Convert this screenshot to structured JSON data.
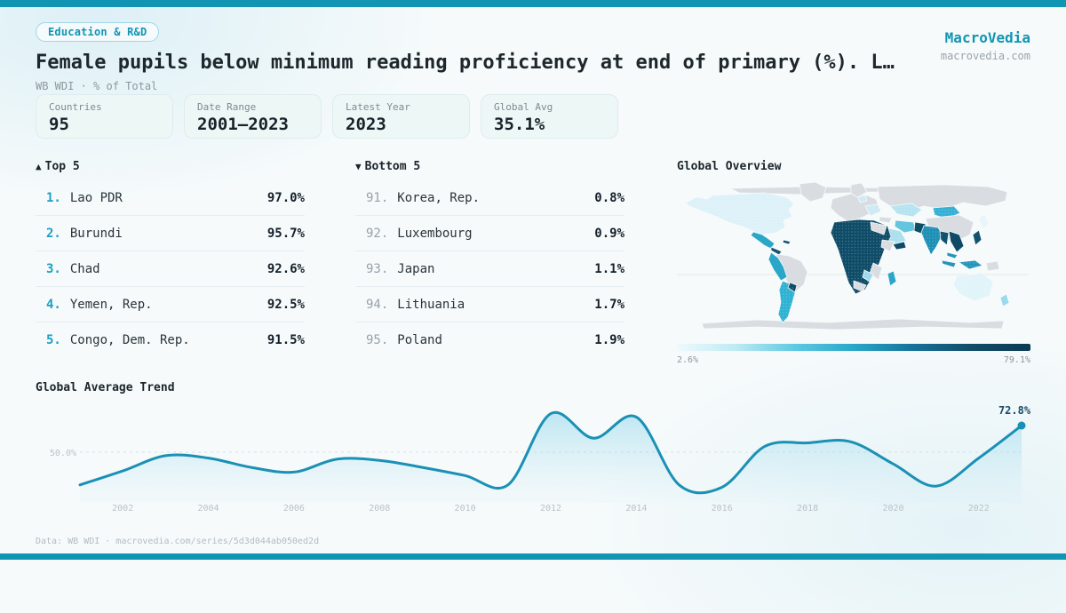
{
  "header": {
    "badge": "Education & R&D",
    "title": "Female pupils below minimum reading proficiency at end of primary (%). L…",
    "subtitle": "WB WDI · % of Total",
    "brand": "MacroVedia",
    "brand_domain": "macrovedia.com"
  },
  "stats": [
    {
      "label": "Countries",
      "value": "95"
    },
    {
      "label": "Date Range",
      "value": "2001—2023"
    },
    {
      "label": "Latest Year",
      "value": "2023"
    },
    {
      "label": "Global Avg",
      "value": "35.1%"
    }
  ],
  "top5": {
    "arrow": "▲",
    "title": "Top 5",
    "items": [
      {
        "rank": "1.",
        "name": "Lao PDR",
        "value": "97.0%"
      },
      {
        "rank": "2.",
        "name": "Burundi",
        "value": "95.7%"
      },
      {
        "rank": "3.",
        "name": "Chad",
        "value": "92.6%"
      },
      {
        "rank": "4.",
        "name": "Yemen, Rep.",
        "value": "92.5%"
      },
      {
        "rank": "5.",
        "name": "Congo, Dem. Rep.",
        "value": "91.5%"
      }
    ]
  },
  "bottom5": {
    "arrow": "▼",
    "title": "Bottom 5",
    "items": [
      {
        "rank": "91.",
        "name": "Korea, Rep.",
        "value": "0.8%"
      },
      {
        "rank": "92.",
        "name": "Luxembourg",
        "value": "0.9%"
      },
      {
        "rank": "93.",
        "name": "Japan",
        "value": "1.1%"
      },
      {
        "rank": "94.",
        "name": "Lithuania",
        "value": "1.7%"
      },
      {
        "rank": "95.",
        "name": "Poland",
        "value": "1.9%"
      }
    ]
  },
  "map": {
    "title": "Global Overview",
    "scale_min": "2.6%",
    "scale_max": "79.1%",
    "scale_colors": [
      "#eefafc",
      "#bfeaf4",
      "#5ec9e2",
      "#28a7c9",
      "#167299",
      "#0f4c68",
      "#0c3a52"
    ],
    "no_data_color": "#d9dde1",
    "region_colors": {
      "arctic": "#d9dde1",
      "greenland": "#d9dde1",
      "canada-us": "#ddf1f9",
      "mexico": "#2aa7c8",
      "central-america": "#11536f",
      "caribbean": "#11536f",
      "south-america-base": "#d9dde1",
      "andes": "#2aa7c8",
      "argentina-chile": "#2fb2d3",
      "paraguay": "#0f4c68",
      "europe": "#d9dde1",
      "scandinavia": "#d9dde1",
      "europe-east-light": "#cfeaf4",
      "baltics-light": "#cfeaf4",
      "russia": "#d9dde1",
      "kazakhstan": "#b5e4f1",
      "mongolia": "#35b0d4",
      "china": "#d9dde1",
      "japan": "#e8f6fa",
      "turkey": "#d9dde1",
      "iran": "#63c5de",
      "saudi-arabia": "#aadfef",
      "yemen": "#0e4a66",
      "pakistan": "#0f4c68",
      "india": "#1f8fb4",
      "bangladesh-myanmar": "#11536f",
      "indochina": "#0e4a66",
      "philippines": "#11536f",
      "malaysia": "#2596bb",
      "indonesia-west": "#2596bb",
      "indonesia-east": "#2596bb",
      "papua": "#d9dde1",
      "africa-base": "#0f4c68",
      "egypt": "#d9dde1",
      "horn-of-africa": "#d9dde1",
      "east-africa": "#d9dde1",
      "zambia": "#9bd9ec",
      "botswana-namibia": "#d9dde1",
      "madagascar": "#2aa7c8",
      "australia": "#e1f4fa",
      "new-zealand": "#9bd9ec",
      "antarctica": "#d9dde1"
    }
  },
  "chart_data": [
    {
      "type": "line",
      "title": "Global Average Trend",
      "x": [
        2001,
        2002,
        2003,
        2004,
        2005,
        2006,
        2007,
        2008,
        2009,
        2010,
        2011,
        2012,
        2013,
        2014,
        2015,
        2016,
        2017,
        2018,
        2019,
        2020,
        2021,
        2022,
        2023
      ],
      "values": [
        22,
        34,
        47,
        45,
        37,
        33,
        44,
        43,
        37,
        30,
        22,
        83,
        62,
        80,
        22,
        20,
        55,
        58,
        59,
        40,
        21,
        45,
        72.8
      ],
      "x_ticks": [
        2002,
        2004,
        2006,
        2008,
        2010,
        2012,
        2014,
        2016,
        2018,
        2020,
        2022
      ],
      "gridline": {
        "value": 50,
        "label": "50.0%"
      },
      "end_point": {
        "x": 2023,
        "value": 72.8,
        "label": "72.8%"
      },
      "ylim": [
        0,
        100
      ],
      "legend": "none",
      "area": true
    },
    {
      "type": "heatmap",
      "subtype": "world-choropleth",
      "title": "Global Overview",
      "colorbar": {
        "min": 2.6,
        "max": 79.1,
        "min_label": "2.6%",
        "max_label": "79.1%"
      },
      "note": "country values shown in top5 and bottom5 lists"
    }
  ],
  "footer": {
    "source": "Data: WB WDI · macrovedia.com/series/5d3d044ab050ed2d"
  },
  "colors": {
    "accent": "#1295b2",
    "rank_top": "#1d9ec4",
    "line_color": "#1b90b5",
    "end_label_ink": "#1b4a63",
    "tick": "#b9c2c8",
    "grid": "#d7dfe3",
    "dark_navy": "#0f4c68"
  }
}
